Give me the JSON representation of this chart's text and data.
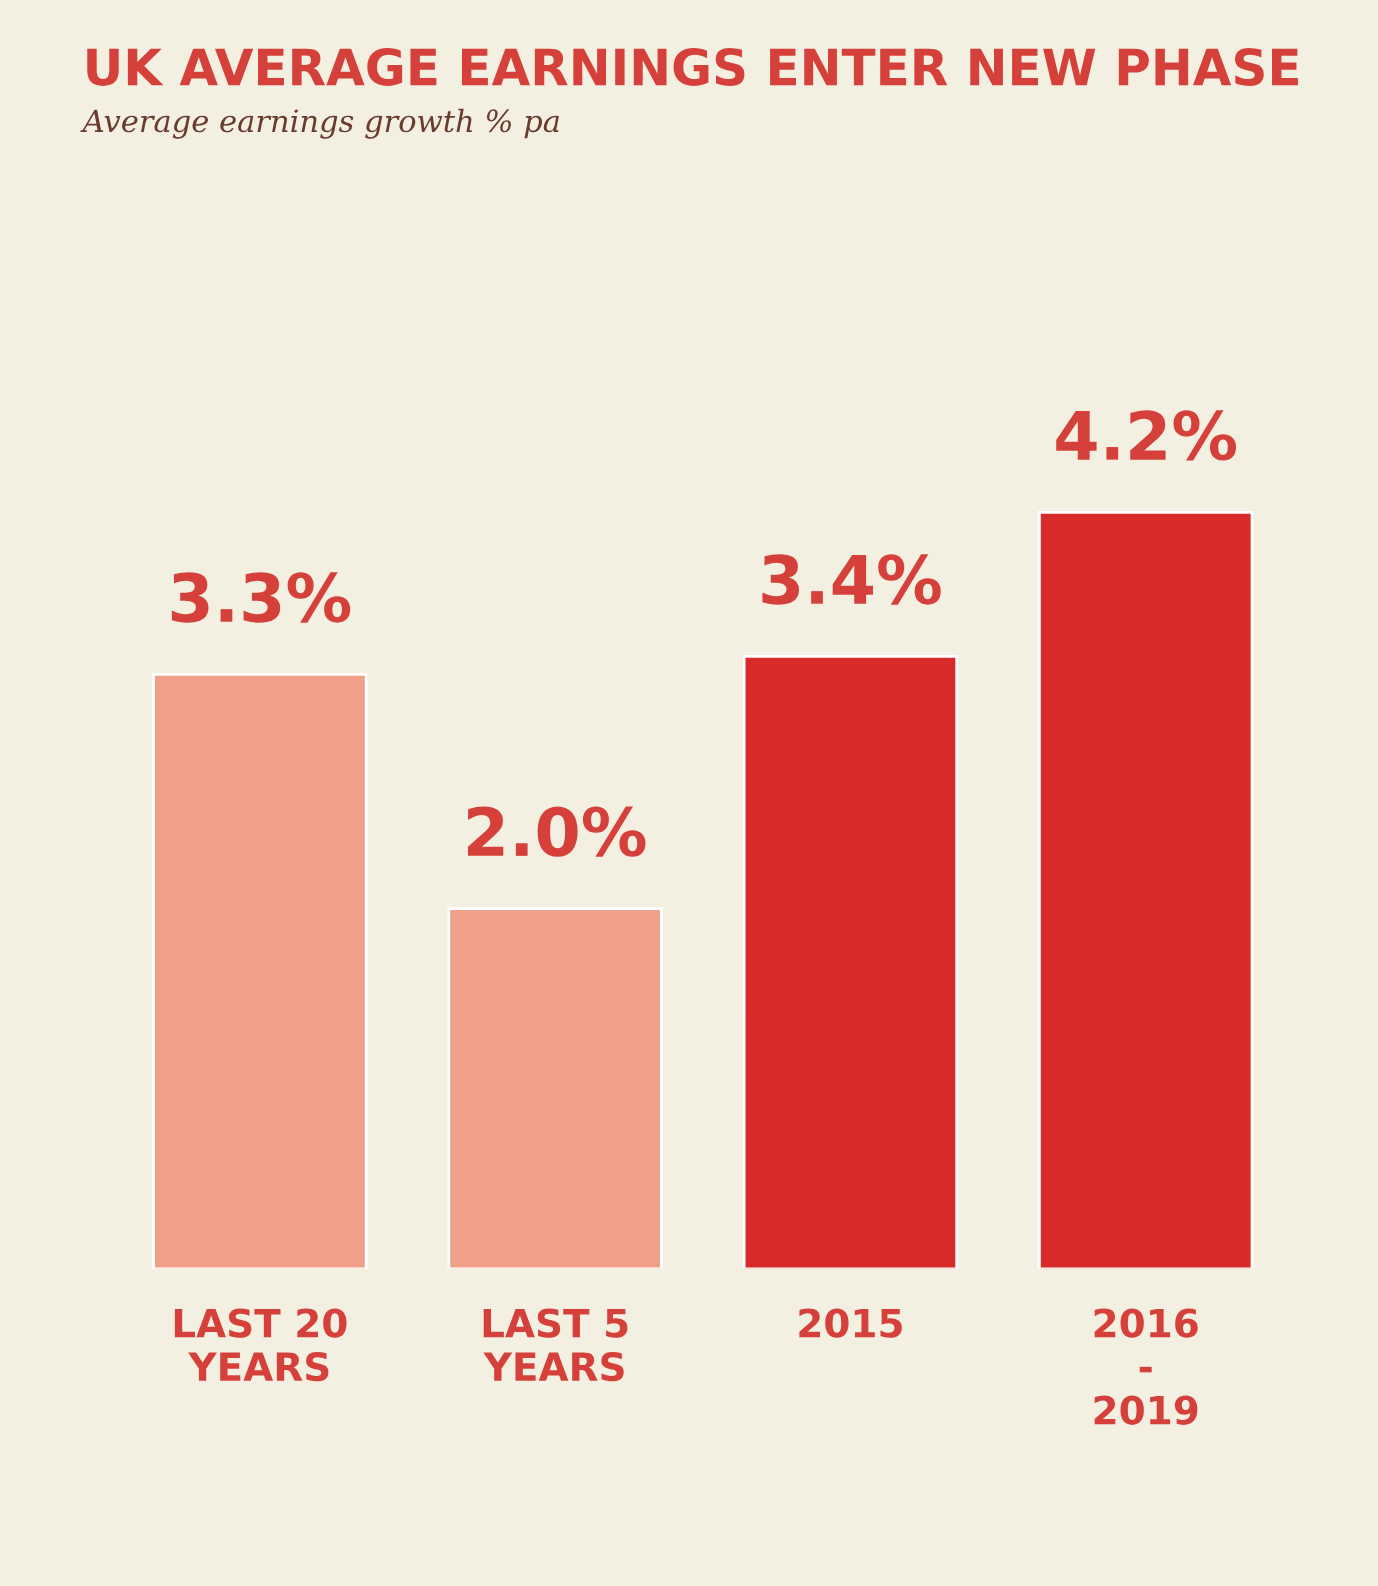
{
  "chart_data": {
    "type": "bar",
    "title": "UK AVERAGE EARNINGS ENTER NEW PHASE",
    "subtitle": "Average earnings growth % pa",
    "categories": [
      "LAST 20\nYEARS",
      "LAST 5\nYEARS",
      "2015",
      "2016\n-\n2019"
    ],
    "values": [
      3.3,
      2.0,
      3.4,
      4.2
    ],
    "colors": [
      "#f0a088",
      "#f0a088",
      "#d92a2a",
      "#d92a2a"
    ],
    "value_labels": [
      "3.3%",
      "2.0%",
      "3.4%",
      "4.2%"
    ]
  }
}
